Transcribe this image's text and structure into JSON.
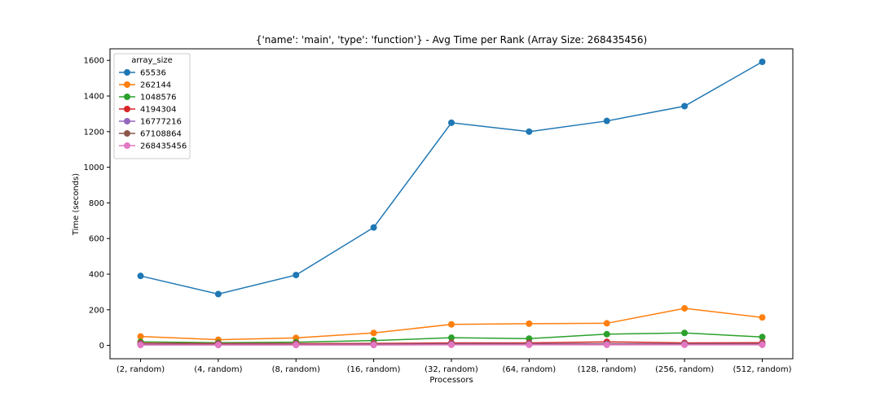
{
  "chart_data": {
    "type": "line",
    "title": "{'name': 'main', 'type': 'function'} - Avg Time per Rank (Array Size: 268435456)",
    "xlabel": "Processors",
    "ylabel": "Time (seconds)",
    "categories": [
      "(2, random)",
      "(4, random)",
      "(8, random)",
      "(16, random)",
      "(32, random)",
      "(64, random)",
      "(128, random)",
      "(256, random)",
      "(512, random)"
    ],
    "ylim": [
      -75,
      1665
    ],
    "yticks": [
      0,
      200,
      400,
      600,
      800,
      1000,
      1200,
      1400,
      1600
    ],
    "grid": false,
    "legend": {
      "title": "array_size",
      "placement": "top-left"
    },
    "series": [
      {
        "name": "65536",
        "color": "#1f77b4",
        "values": [
          390,
          288,
          395,
          662,
          1250,
          1200,
          1260,
          1343,
          1592
        ]
      },
      {
        "name": "262144",
        "color": "#ff7f0e",
        "values": [
          50,
          32,
          42,
          70,
          118,
          122,
          124,
          208,
          157
        ]
      },
      {
        "name": "1048576",
        "color": "#2ca02c",
        "values": [
          20,
          15,
          18,
          27,
          43,
          38,
          63,
          70,
          47
        ]
      },
      {
        "name": "4194304",
        "color": "#d62728",
        "values": [
          12,
          10,
          10,
          11,
          14,
          14,
          20,
          14,
          15
        ]
      },
      {
        "name": "16777216",
        "color": "#9467bd",
        "values": [
          8,
          6,
          6,
          7,
          9,
          9,
          9,
          9,
          9
        ]
      },
      {
        "name": "67108864",
        "color": "#8c564b",
        "values": [
          5,
          4,
          4,
          5,
          6,
          6,
          6,
          6,
          6
        ]
      },
      {
        "name": "268435456",
        "color": "#e377c2",
        "values": [
          2,
          2,
          2,
          2,
          3,
          3,
          3,
          3,
          3
        ]
      }
    ]
  }
}
